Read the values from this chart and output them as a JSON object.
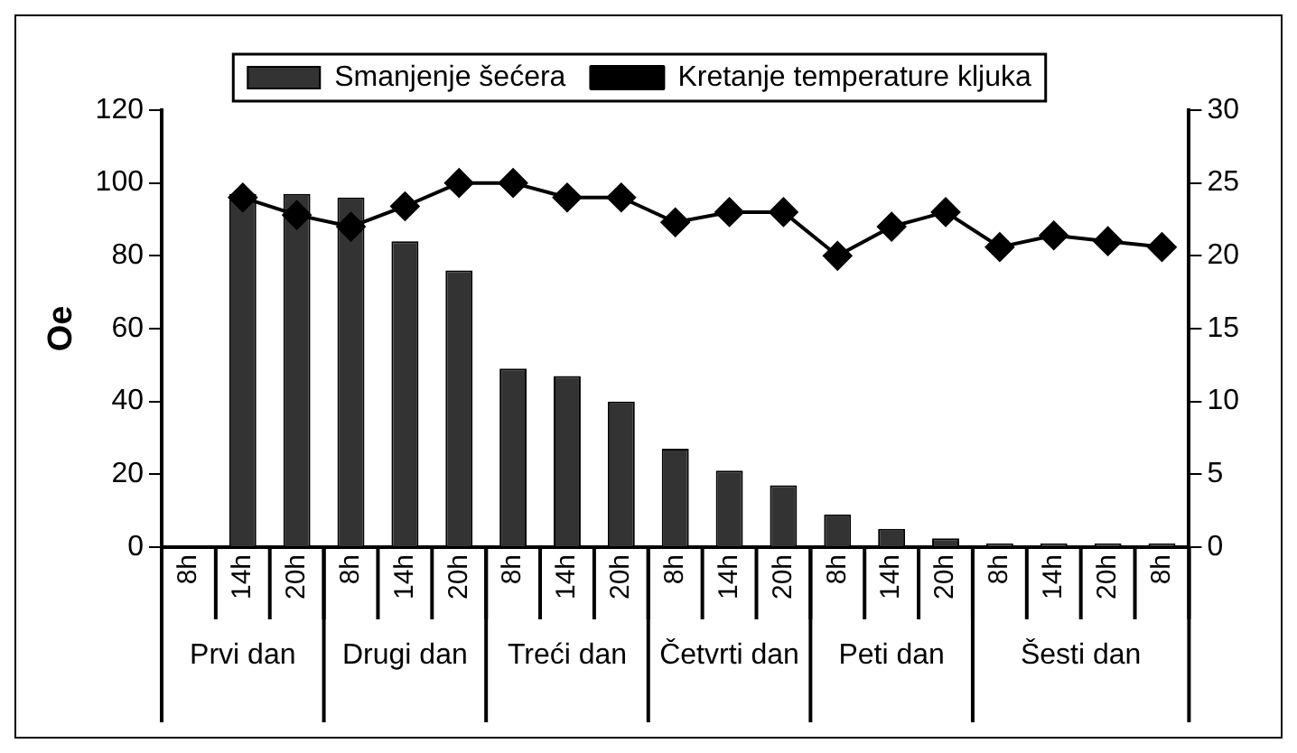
{
  "chart_data": {
    "type": "bar",
    "categories": [
      "8h",
      "14h",
      "20h",
      "8h",
      "14h",
      "20h",
      "8h",
      "14h",
      "20h",
      "8h",
      "14h",
      "20h",
      "8h",
      "14h",
      "20h",
      "8h",
      "14h",
      "20h",
      "8h"
    ],
    "series": [
      {
        "name": "Smanjenje šećera",
        "color": "#333333",
        "values": [
          null,
          97,
          97,
          96,
          84,
          76,
          49,
          47,
          40,
          27,
          21,
          17,
          9,
          5,
          2.4,
          1,
          1,
          1,
          1
        ]
      },
      {
        "name": "Kretanje temperature kljuka",
        "type": "line",
        "axis": "y2",
        "color": "#000000",
        "marker": "diamond",
        "values": [
          null,
          24,
          22.8,
          22,
          23.4,
          25,
          25,
          24,
          24,
          22.3,
          23,
          23,
          20,
          22,
          23,
          20.6,
          21.4,
          21,
          20.6
        ]
      }
    ],
    "ylabel": "Oe",
    "ylim": [
      0,
      120
    ],
    "yticks": [
      0,
      20,
      40,
      60,
      80,
      100,
      120
    ],
    "y2lim": [
      0,
      30
    ],
    "y2ticks": [
      0,
      5,
      10,
      15,
      20,
      25,
      30
    ],
    "annotations": [
      "Prvi dan",
      "Drugi dan",
      "Treći dan",
      "Četvrti dan",
      "Peti dan",
      "Šesti dan"
    ],
    "legend": "top",
    "grid": false
  }
}
